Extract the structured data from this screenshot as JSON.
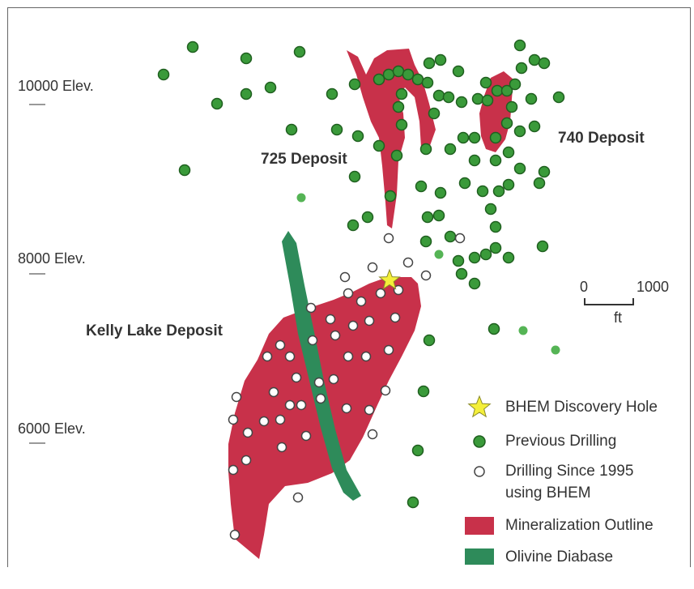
{
  "elevations": [
    "10000 Elev.",
    "8000 Elev.",
    "6000 Elev."
  ],
  "deposits": {
    "d725": "725 Deposit",
    "d740": "740 Deposit",
    "kelly": "Kelly Lake Deposit"
  },
  "scale": {
    "zero": "0",
    "max": "1000",
    "unit": "ft"
  },
  "legend": {
    "discovery": "BHEM Discovery Hole",
    "previous": "Previous Drilling",
    "since_line1": "Drilling Since 1995",
    "since_line2": "using BHEM",
    "mineral": "Mineralization Outline",
    "diabase": "Olivine Diabase"
  },
  "colors": {
    "mineralization": "#c8314a",
    "diabase": "#2e8b5a",
    "previous_drill": "#3a9a3a",
    "previous_drill_stroke": "#1f5f1f",
    "new_drill_fill": "#ffffff",
    "new_drill_stroke": "#444444",
    "star": "#f4ef3a"
  }
}
